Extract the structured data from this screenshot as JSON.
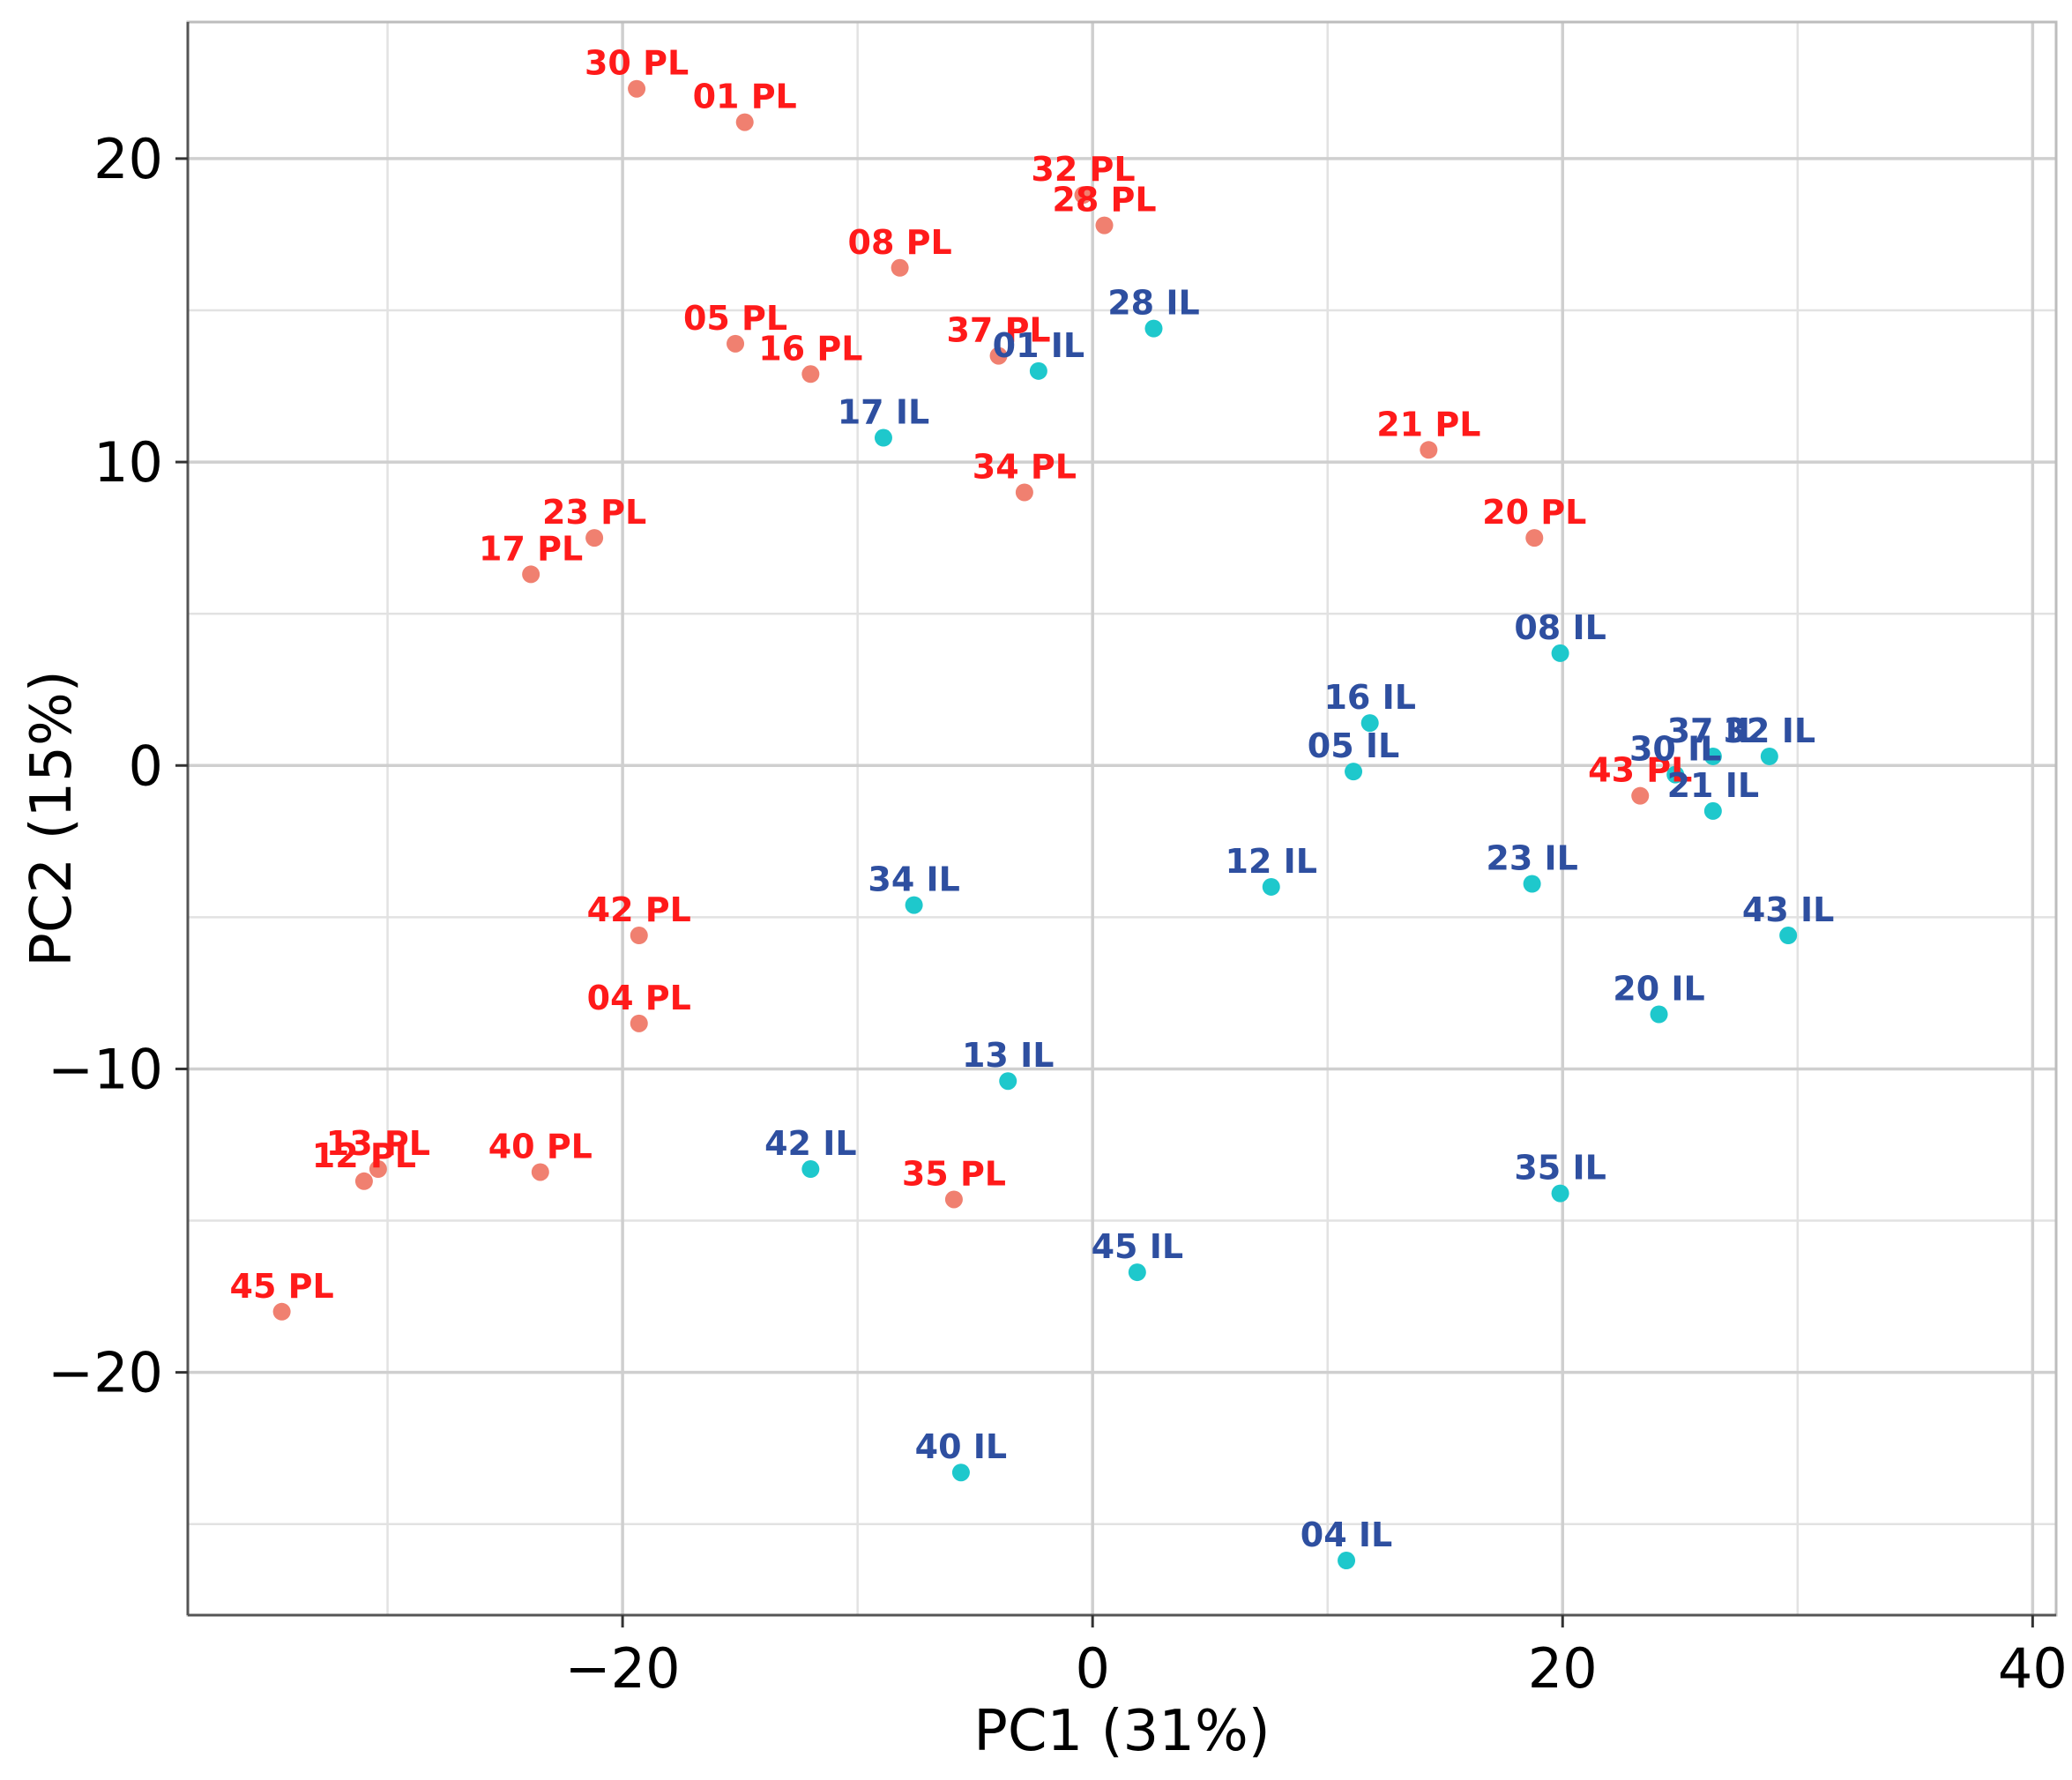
{
  "chart_data": {
    "type": "scatter",
    "title": "",
    "xlabel": "PC1 (31%)",
    "ylabel": "PC2 (15%)",
    "xlim": [
      -38.5,
      41
    ],
    "ylim": [
      -28,
      24.5
    ],
    "xticks": [
      -20,
      0,
      20,
      40
    ],
    "yticks": [
      -20,
      -10,
      0,
      10,
      20
    ],
    "xtick_labels": [
      "−20",
      "0",
      "20",
      "40"
    ],
    "ytick_labels": [
      "−20",
      "−10",
      "0",
      "10",
      "20"
    ],
    "grid": true,
    "colors": {
      "PL": "#f08070",
      "IL": "#1ec8cc",
      "PL_label": "#ff1a1a",
      "IL_label": "#2e4fa0"
    },
    "series": [
      {
        "name": "PL",
        "points": [
          {
            "label": "30 PL",
            "x": -19.4,
            "y": 22.3
          },
          {
            "label": "01 PL",
            "x": -14.8,
            "y": 21.2
          },
          {
            "label": "32 PL",
            "x": -0.4,
            "y": 18.8
          },
          {
            "label": "28 PL",
            "x": 0.5,
            "y": 17.8
          },
          {
            "label": "08 PL",
            "x": -8.2,
            "y": 16.4
          },
          {
            "label": "05 PL",
            "x": -15.2,
            "y": 13.9
          },
          {
            "label": "37 PL",
            "x": -4.0,
            "y": 13.5
          },
          {
            "label": "16 PL",
            "x": -12.0,
            "y": 12.9
          },
          {
            "label": "21 PL",
            "x": 14.3,
            "y": 10.4
          },
          {
            "label": "34 PL",
            "x": -2.9,
            "y": 9.0
          },
          {
            "label": "23 PL",
            "x": -21.2,
            "y": 7.5
          },
          {
            "label": "20 PL",
            "x": 18.8,
            "y": 7.5
          },
          {
            "label": "17 PL",
            "x": -23.9,
            "y": 6.3
          },
          {
            "label": "43 PL",
            "x": 23.3,
            "y": -1.0
          },
          {
            "label": "42 PL",
            "x": -19.3,
            "y": -5.6
          },
          {
            "label": "04 PL",
            "x": -19.3,
            "y": -8.5
          },
          {
            "label": "13 PL",
            "x": -30.4,
            "y": -13.3
          },
          {
            "label": "12 PL",
            "x": -31.0,
            "y": -13.7
          },
          {
            "label": "40 PL",
            "x": -23.5,
            "y": -13.4
          },
          {
            "label": "35 PL",
            "x": -5.9,
            "y": -14.3
          },
          {
            "label": "45 PL",
            "x": -34.5,
            "y": -18.0
          }
        ]
      },
      {
        "name": "IL",
        "points": [
          {
            "label": "28 IL",
            "x": 2.6,
            "y": 14.4
          },
          {
            "label": "01 IL",
            "x": -2.3,
            "y": 13.0
          },
          {
            "label": "17 IL",
            "x": -8.9,
            "y": 10.8
          },
          {
            "label": "08 IL",
            "x": 19.9,
            "y": 3.7
          },
          {
            "label": "16 IL",
            "x": 11.8,
            "y": 1.4
          },
          {
            "label": "37 IL",
            "x": 26.4,
            "y": 0.3
          },
          {
            "label": "32 IL",
            "x": 28.8,
            "y": 0.3
          },
          {
            "label": "30 IL",
            "x": 24.8,
            "y": -0.3
          },
          {
            "label": "05 IL",
            "x": 11.1,
            "y": -0.2
          },
          {
            "label": "21 IL",
            "x": 26.4,
            "y": -1.5
          },
          {
            "label": "12 IL",
            "x": 7.6,
            "y": -4.0
          },
          {
            "label": "23 IL",
            "x": 18.7,
            "y": -3.9
          },
          {
            "label": "34 IL",
            "x": -7.6,
            "y": -4.6
          },
          {
            "label": "43 IL",
            "x": 29.6,
            "y": -5.6
          },
          {
            "label": "20 IL",
            "x": 24.1,
            "y": -8.2
          },
          {
            "label": "13 IL",
            "x": -3.6,
            "y": -10.4
          },
          {
            "label": "42 IL",
            "x": -12.0,
            "y": -13.3
          },
          {
            "label": "35 IL",
            "x": 19.9,
            "y": -14.1
          },
          {
            "label": "45 IL",
            "x": 1.9,
            "y": -16.7
          },
          {
            "label": "40 IL",
            "x": -5.6,
            "y": -23.3
          },
          {
            "label": "04 IL",
            "x": 10.8,
            "y": -26.2
          }
        ]
      }
    ]
  }
}
